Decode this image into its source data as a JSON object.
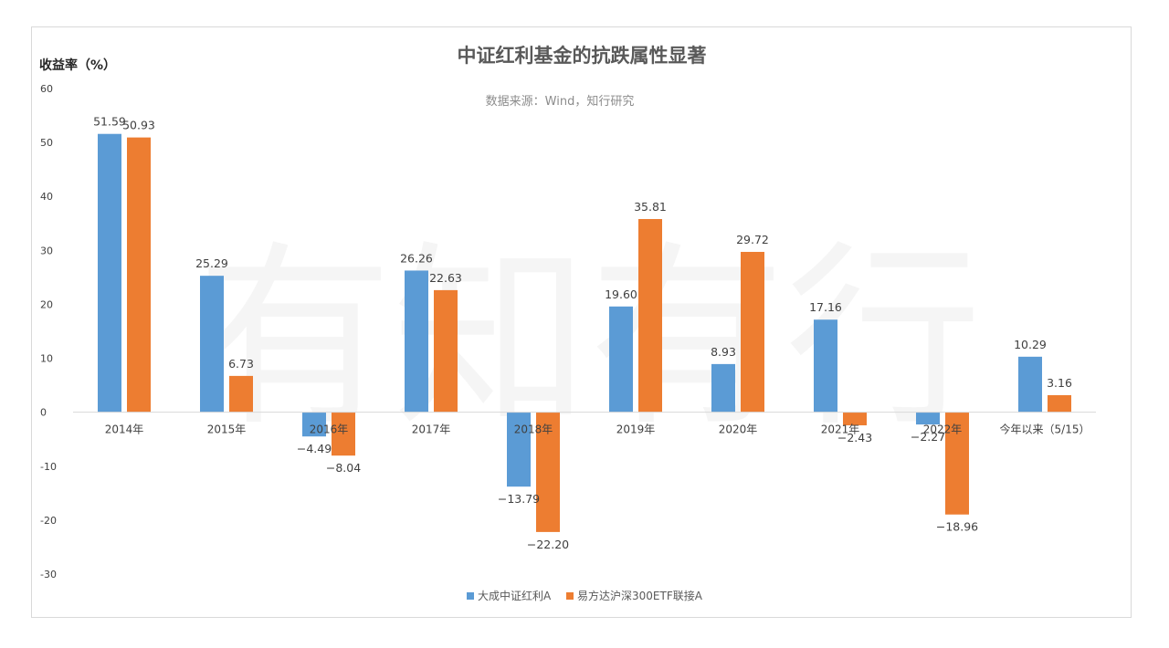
{
  "chart_data": {
    "type": "bar",
    "title": "中证红利基金的抗跌属性显著",
    "subtitle": "数据来源：Wind，知行研究",
    "ylabel": "收益率（%）",
    "xlabel": "",
    "ylim": [
      -30,
      60
    ],
    "yticks": [
      60,
      50,
      40,
      30,
      20,
      10,
      0,
      -10,
      -20,
      -30
    ],
    "categories": [
      "2014年",
      "2015年",
      "2016年",
      "2017年",
      "2018年",
      "2019年",
      "2020年",
      "2021年",
      "2022年",
      "今年以来（5/15）"
    ],
    "series": [
      {
        "name": "大成中证红利A",
        "color": "#5b9bd5",
        "values": [
          51.59,
          25.29,
          -4.49,
          26.26,
          -13.79,
          19.6,
          8.93,
          17.16,
          -2.27,
          10.29
        ],
        "labels": [
          "51.59",
          "25.29",
          "−4.49",
          "26.26",
          "−13.79",
          "19.60",
          "8.93",
          "17.16",
          "−2.27",
          "10.29"
        ]
      },
      {
        "name": "易方达沪深300ETF联接A",
        "color": "#ed7d31",
        "values": [
          50.93,
          6.73,
          -8.04,
          22.63,
          -22.2,
          35.81,
          29.72,
          -2.43,
          -18.96,
          3.16
        ],
        "labels": [
          "50.93",
          "6.73",
          "−8.04",
          "22.63",
          "−22.20",
          "35.81",
          "29.72",
          "−2.43",
          "−18.96",
          "3.16"
        ]
      }
    ],
    "grid": false,
    "legend": "bottom-center",
    "watermark": "有知有行"
  }
}
